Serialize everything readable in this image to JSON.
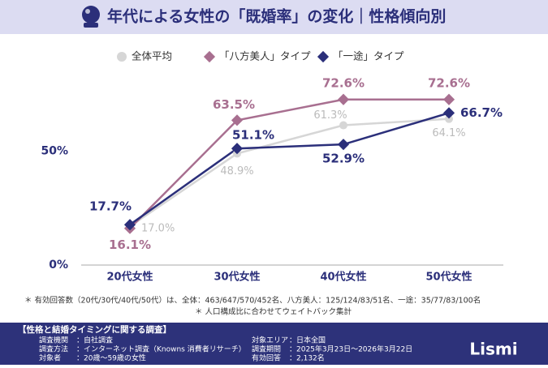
{
  "header": {
    "title": "年代による女性の「既婚率」の変化｜性格傾向別"
  },
  "chart_data": {
    "type": "line",
    "categories": [
      "20代女性",
      "30代女性",
      "40代女性",
      "50代女性"
    ],
    "series": [
      {
        "name": "全体平均",
        "color": "#d6d6d6",
        "marker": "circle",
        "values": [
          17.0,
          48.9,
          61.3,
          64.1
        ],
        "value_labels": [
          "17.0%",
          "48.9%",
          "61.3%",
          "64.1%"
        ]
      },
      {
        "name": "「八方美人」タイプ",
        "color": "#a86f90",
        "marker": "diamond",
        "values": [
          16.1,
          63.5,
          72.6,
          72.6
        ],
        "value_labels": [
          "16.1%",
          "63.5%",
          "72.6%",
          "72.6%"
        ]
      },
      {
        "name": "「一途」タイプ",
        "color": "#2b2f7a",
        "marker": "diamond",
        "values": [
          17.7,
          51.1,
          52.9,
          66.7
        ],
        "value_labels": [
          "17.7%",
          "51.1%",
          "52.9%",
          "66.7%"
        ]
      }
    ],
    "ylim": [
      0,
      75
    ],
    "yticks": [
      {
        "value": 0,
        "label": "0%"
      },
      {
        "value": 50,
        "label": "50%"
      }
    ]
  },
  "notes": [
    "＊ 有効回答数（20代/30代/40代/50代）は、全体：463/647/570/452名、八方美人：125/124/83/51名、一途：35/77/83/100名",
    "＊ 人口構成比に合わせてウェイトバック集計"
  ],
  "survey": {
    "title": "【性格と結婚タイミングに関する調査】",
    "items": [
      {
        "label": "調査機関",
        "value": "：自社調査"
      },
      {
        "label": "調査方法",
        "value": "：インターネット調査（Knowns 消費者リサーチ）"
      },
      {
        "label": "対象者",
        "value": "：20歳～59歳の女性"
      },
      {
        "label": "対象エリア",
        "value": "：日本全国"
      },
      {
        "label": "調査期間",
        "value": "：2025年3月23日～2026年3月22日"
      },
      {
        "label": "有効回答",
        "value": "：2,132名"
      }
    ]
  },
  "logo": "Lismi"
}
